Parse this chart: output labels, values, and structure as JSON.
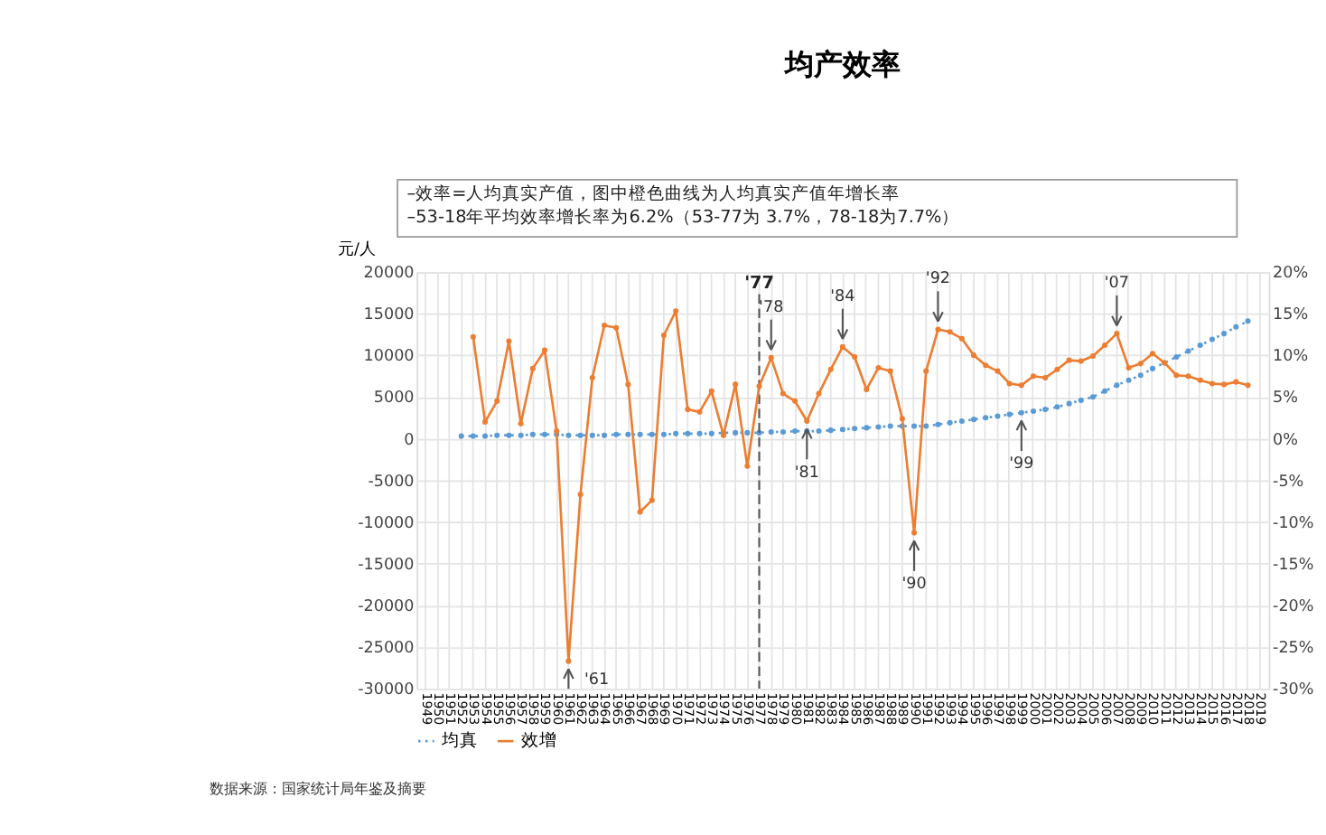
{
  "chart_data": {
    "type": "line",
    "title": "均产效率",
    "annotations": [
      "–效率=人均真实产值，图中橙色曲线为人均真实产值年增长率",
      "–53-18年平均效率增长率为6.2%（53-77为 3.7%，78-18为7.7%）",
      "数据来源：国家统计局年鉴及摘要",
      {
        "text": "'61",
        "x": "1961",
        "y": -26700
      },
      {
        "text": "'78",
        "x": "1978",
        "y": 9700
      },
      {
        "text": "'84",
        "x": "1984",
        "y": 11000
      },
      {
        "text": "'92",
        "x": "1992",
        "y": 13100
      },
      {
        "text": "'07",
        "x": "2007",
        "y": 12600
      },
      {
        "text": "'81",
        "x": "1981",
        "y": 2100
      },
      {
        "text": "'90",
        "x": "1990",
        "y": -11300
      },
      {
        "text": "'99",
        "x": "1999",
        "y": 3100
      }
    ],
    "ylabel": "元/人",
    "categories": [
      "1949",
      "1950",
      "1951",
      "1952",
      "1953",
      "1954",
      "1955",
      "1956",
      "1957",
      "1958",
      "1959",
      "1960",
      "1961",
      "1962",
      "1963",
      "1964",
      "1965",
      "1966",
      "1967",
      "1968",
      "1969",
      "1970",
      "1971",
      "1972",
      "1973",
      "1974",
      "1975",
      "1976",
      "1977",
      "1978",
      "1979",
      "1980",
      "1981",
      "1982",
      "1983",
      "1984",
      "1985",
      "1986",
      "1987",
      "1988",
      "1989",
      "1990",
      "1991",
      "1992",
      "1993",
      "1994",
      "1995",
      "1996",
      "1997",
      "1998",
      "1999",
      "2000",
      "2001",
      "2002",
      "2003",
      "2004",
      "2005",
      "2006",
      "2007",
      "2008",
      "2009",
      "2010",
      "2011",
      "2012",
      "2013",
      "2014",
      "2015",
      "2016",
      "2017",
      "2018",
      "2019"
    ],
    "series": [
      {
        "name": "均真",
        "color": "#5b9bd5",
        "line_style": "dotted",
        "values": [
          null,
          null,
          null,
          300,
          300,
          300,
          400,
          400,
          400,
          500,
          500,
          500,
          400,
          400,
          400,
          400,
          500,
          500,
          500,
          500,
          500,
          600,
          600,
          600,
          600,
          700,
          700,
          700,
          700,
          800,
          800,
          900,
          900,
          900,
          1000,
          1100,
          1200,
          1300,
          1400,
          1500,
          1500,
          1500,
          1500,
          1700,
          1900,
          2100,
          2300,
          2500,
          2700,
          2900,
          3100,
          3300,
          3500,
          3800,
          4200,
          4600,
          5000,
          5700,
          6400,
          7000,
          7600,
          8400,
          9100,
          9800,
          10500,
          11200,
          11900,
          12600,
          13400,
          14100,
          null
        ]
      },
      {
        "name": "效增",
        "color": "#ed7d31",
        "line_style": "solid",
        "axis": "y2",
        "values": [
          null,
          null,
          null,
          null,
          12.2,
          2.0,
          4.5,
          11.7,
          1.8,
          8.4,
          10.6,
          0.9,
          -26.7,
          -6.7,
          7.3,
          13.6,
          13.3,
          6.5,
          -8.8,
          -7.4,
          12.4,
          15.3,
          3.5,
          3.2,
          5.7,
          0.4,
          6.5,
          -3.3,
          6.3,
          9.7,
          5.4,
          4.5,
          2.1,
          5.4,
          8.3,
          11.0,
          9.8,
          5.9,
          8.5,
          8.1,
          2.4,
          -11.3,
          8.1,
          13.1,
          12.8,
          12.0,
          10.0,
          8.8,
          8.1,
          6.6,
          6.4,
          7.5,
          7.3,
          8.3,
          9.4,
          9.3,
          9.9,
          11.2,
          12.6,
          8.5,
          9.0,
          10.2,
          9.1,
          7.6,
          7.5,
          7.0,
          6.6,
          6.5,
          6.8,
          6.4,
          null
        ]
      }
    ],
    "ylim": [
      -30000,
      20000
    ],
    "yticks": [
      -30000,
      -25000,
      -20000,
      -15000,
      -10000,
      -5000,
      0,
      5000,
      10000,
      15000,
      20000
    ],
    "y2lim": [
      -30,
      20
    ],
    "y2ticks": [
      {
        "value": -30,
        "label": "-30%"
      },
      {
        "value": -25,
        "label": "-25%"
      },
      {
        "value": -20,
        "label": "-20%"
      },
      {
        "value": -15,
        "label": "-15%"
      },
      {
        "value": -10,
        "label": "-10%"
      },
      {
        "value": -5,
        "label": "-5%"
      },
      {
        "value": 0,
        "label": "0%"
      },
      {
        "value": 5,
        "label": "5%"
      },
      {
        "value": 10,
        "label": "10%"
      },
      {
        "value": 15,
        "label": "15%"
      },
      {
        "value": 20,
        "label": "20%"
      }
    ],
    "ref_lines": [
      {
        "axis": "x",
        "value": "1977",
        "label": "'77",
        "line_style": "dashed",
        "color": "#555555"
      }
    ],
    "grid": true,
    "legend": "bottom",
    "marker": "circle"
  }
}
